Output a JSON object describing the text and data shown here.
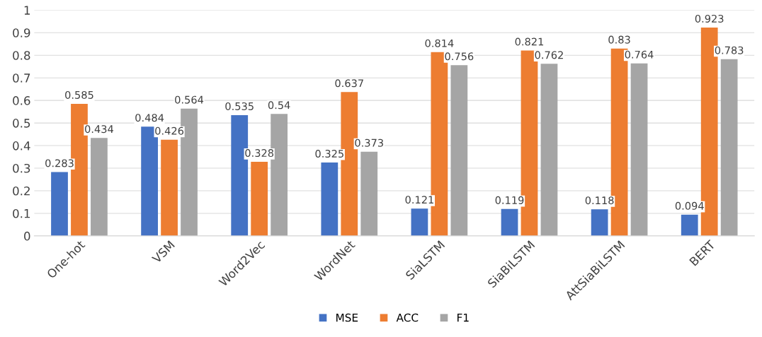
{
  "chart_data": {
    "type": "bar",
    "categories": [
      "One-hot",
      "VSM",
      "Word2Vec",
      "WordNet",
      "SiaLSTM",
      "SiaBiLSTM",
      "AttSiaBiLSTM",
      "BERT"
    ],
    "series": [
      {
        "name": "MSE",
        "color": "#4472c4",
        "values": [
          0.283,
          0.484,
          0.535,
          0.325,
          0.121,
          0.119,
          0.118,
          0.094
        ]
      },
      {
        "name": "ACC",
        "color": "#ed7d31",
        "values": [
          0.585,
          0.426,
          0.328,
          0.637,
          0.814,
          0.821,
          0.83,
          0.923
        ]
      },
      {
        "name": "F1",
        "color": "#a5a5a5",
        "values": [
          0.434,
          0.564,
          0.54,
          0.373,
          0.756,
          0.762,
          0.764,
          0.783
        ]
      }
    ],
    "ylim": [
      0,
      1
    ],
    "yticks": [
      0,
      0.1,
      0.2,
      0.3,
      0.4,
      0.5,
      0.6,
      0.7,
      0.8,
      0.9,
      1
    ],
    "grid": "y",
    "legend": "bottom",
    "data_labels": true
  }
}
